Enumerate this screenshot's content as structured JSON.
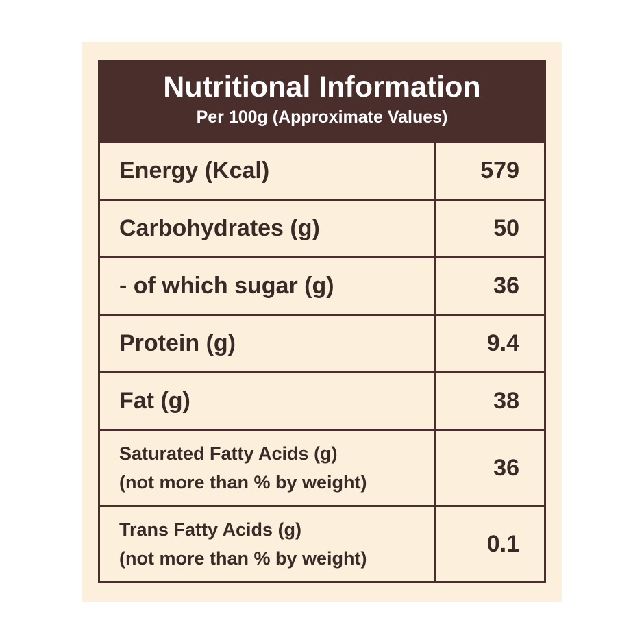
{
  "header": {
    "title": "Nutritional Information",
    "subtitle": "Per 100g (Approximate Values)"
  },
  "table": {
    "rows": [
      {
        "label": [
          "Energy (Kcal)"
        ],
        "value": 579
      },
      {
        "label": [
          "Carbohydrates (g)"
        ],
        "value": 50
      },
      {
        "label": [
          "- of which sugar (g)"
        ],
        "value": 36
      },
      {
        "label": [
          "Protein (g)"
        ],
        "value": 9.4
      },
      {
        "label": [
          "Fat (g)"
        ],
        "value": 38
      },
      {
        "label": [
          "Saturated Fatty Acids (g)",
          "(not more than % by weight)"
        ],
        "value": 36
      },
      {
        "label": [
          "Trans Fatty Acids (g)",
          "(not more than % by weight)"
        ],
        "value": 0.1
      }
    ]
  }
}
